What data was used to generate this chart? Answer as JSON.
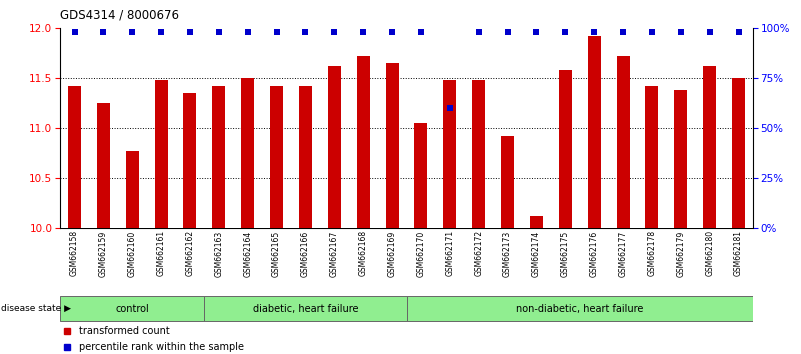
{
  "title": "GDS4314 / 8000676",
  "samples": [
    "GSM662158",
    "GSM662159",
    "GSM662160",
    "GSM662161",
    "GSM662162",
    "GSM662163",
    "GSM662164",
    "GSM662165",
    "GSM662166",
    "GSM662167",
    "GSM662168",
    "GSM662169",
    "GSM662170",
    "GSM662171",
    "GSM662172",
    "GSM662173",
    "GSM662174",
    "GSM662175",
    "GSM662176",
    "GSM662177",
    "GSM662178",
    "GSM662179",
    "GSM662180",
    "GSM662181"
  ],
  "bar_values": [
    11.42,
    11.25,
    10.77,
    11.48,
    11.35,
    11.42,
    11.5,
    11.42,
    11.42,
    11.62,
    11.72,
    11.65,
    11.05,
    11.48,
    11.48,
    10.92,
    10.12,
    11.58,
    11.92,
    11.72,
    11.42,
    11.38,
    11.62,
    11.5
  ],
  "percentile_values": [
    98,
    98,
    98,
    98,
    98,
    98,
    98,
    98,
    98,
    98,
    98,
    98,
    98,
    60,
    98,
    98,
    98,
    98,
    98,
    98,
    98,
    98,
    98,
    98
  ],
  "bar_color": "#CC0000",
  "dot_color": "#0000CC",
  "ylim_left": [
    10.0,
    12.0
  ],
  "ylim_right": [
    0,
    100
  ],
  "yticks_left": [
    10.0,
    10.5,
    11.0,
    11.5,
    12.0
  ],
  "yticks_right": [
    0,
    25,
    50,
    75,
    100
  ],
  "group_starts": [
    0,
    5,
    12
  ],
  "group_ends": [
    5,
    12,
    24
  ],
  "group_labels": [
    "control",
    "diabetic, heart failure",
    "non-diabetic, heart failure"
  ],
  "group_color": "#90EE90",
  "tick_bg_color": "#c8c8c8",
  "background_color": "#ffffff",
  "bar_width": 0.45
}
